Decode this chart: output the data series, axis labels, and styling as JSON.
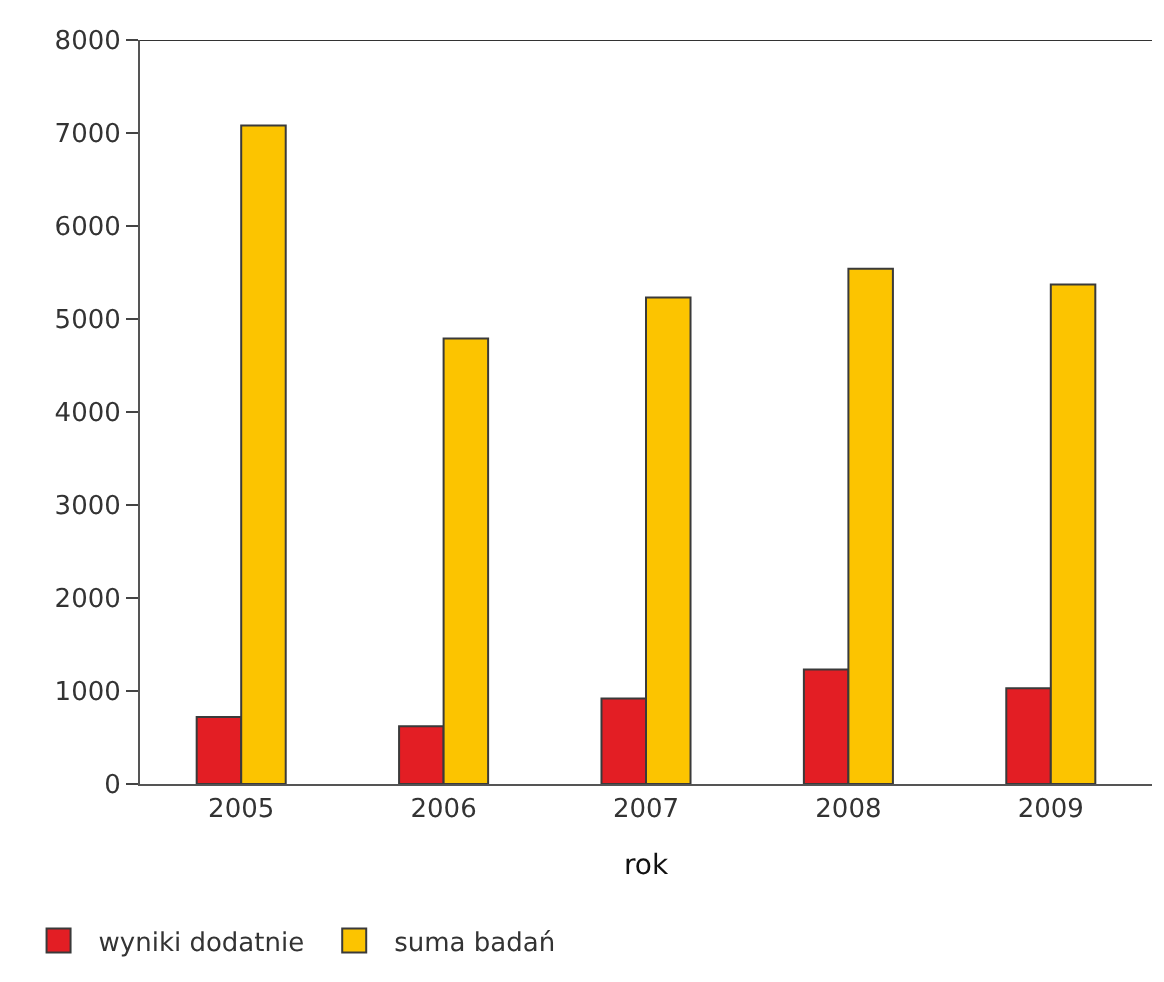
{
  "chart_data": {
    "type": "bar",
    "xlabel": "rok",
    "categories": [
      "2005",
      "2006",
      "2007",
      "2008",
      "2009"
    ],
    "series": [
      {
        "name": "wyniki dodatnie",
        "color": "#e31e24",
        "values": [
          720,
          620,
          920,
          1230,
          1030
        ]
      },
      {
        "name": "suma badań",
        "color": "#fcc400",
        "values": [
          7080,
          4790,
          5230,
          5540,
          5370
        ]
      }
    ],
    "ylim": [
      0,
      8000
    ],
    "yticks": [
      0,
      1000,
      2000,
      3000,
      4000,
      5000,
      6000,
      7000,
      8000
    ],
    "legend": "bottom left"
  }
}
